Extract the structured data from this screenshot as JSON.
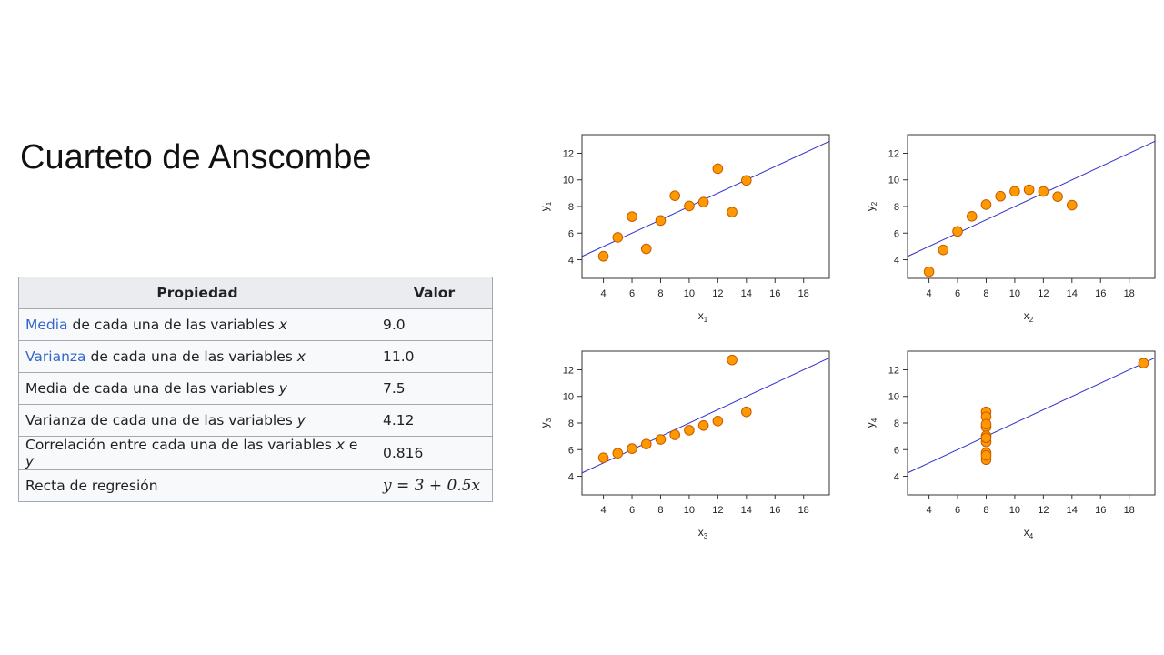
{
  "slide": {
    "title": "Cuarteto de Anscombe"
  },
  "table": {
    "headers": [
      "Propiedad",
      "Valor"
    ],
    "rows": [
      {
        "link": "Media",
        "text": " de cada una de las variables ",
        "var1": "x",
        "mid": "",
        "var2": "",
        "value": "9.0"
      },
      {
        "link": "Varianza",
        "text": " de cada una de las variables ",
        "var1": "x",
        "mid": "",
        "var2": "",
        "value": "11.0"
      },
      {
        "link": "",
        "text": "Media de cada una de las variables ",
        "var1": "y",
        "mid": "",
        "var2": "",
        "value": "7.5"
      },
      {
        "link": "",
        "text": "Varianza de cada una de las variables ",
        "var1": "y",
        "mid": "",
        "var2": "",
        "value": "4.12"
      },
      {
        "link": "",
        "text": "Correlación entre cada una de las variables ",
        "var1": "x",
        "mid": " e ",
        "var2": "y",
        "value": "0.816"
      },
      {
        "link": "",
        "text": "Recta de regresión",
        "var1": "",
        "mid": "",
        "var2": "",
        "value": "y = 3 + 0.5x"
      }
    ]
  },
  "colors": {
    "point_fill": "#ff9900",
    "point_stroke": "#c85a00",
    "line": "#3333cc",
    "link": "#3366cc"
  },
  "chart_data": [
    {
      "type": "scatter",
      "xlabel": "x",
      "xsub": "1",
      "ylabel": "y",
      "ysub": "1",
      "xlim": [
        2.5,
        19.8
      ],
      "ylim": [
        2.6,
        13.4
      ],
      "xticks": [
        4,
        6,
        8,
        10,
        12,
        14,
        16,
        18
      ],
      "yticks": [
        4,
        6,
        8,
        10,
        12
      ],
      "regression": {
        "intercept": 3,
        "slope": 0.5
      },
      "x": [
        10,
        8,
        13,
        9,
        11,
        14,
        6,
        4,
        12,
        7,
        5
      ],
      "y": [
        8.04,
        6.95,
        7.58,
        8.81,
        8.33,
        9.96,
        7.24,
        4.26,
        10.84,
        4.82,
        5.68
      ]
    },
    {
      "type": "scatter",
      "xlabel": "x",
      "xsub": "2",
      "ylabel": "y",
      "ysub": "2",
      "xlim": [
        2.5,
        19.8
      ],
      "ylim": [
        2.6,
        13.4
      ],
      "xticks": [
        4,
        6,
        8,
        10,
        12,
        14,
        16,
        18
      ],
      "yticks": [
        4,
        6,
        8,
        10,
        12
      ],
      "regression": {
        "intercept": 3,
        "slope": 0.5
      },
      "x": [
        10,
        8,
        13,
        9,
        11,
        14,
        6,
        4,
        12,
        7,
        5
      ],
      "y": [
        9.14,
        8.14,
        8.74,
        8.77,
        9.26,
        8.1,
        6.13,
        3.1,
        9.13,
        7.26,
        4.74
      ]
    },
    {
      "type": "scatter",
      "xlabel": "x",
      "xsub": "3",
      "ylabel": "y",
      "ysub": "3",
      "xlim": [
        2.5,
        19.8
      ],
      "ylim": [
        2.6,
        13.4
      ],
      "xticks": [
        4,
        6,
        8,
        10,
        12,
        14,
        16,
        18
      ],
      "yticks": [
        4,
        6,
        8,
        10,
        12
      ],
      "regression": {
        "intercept": 3,
        "slope": 0.5
      },
      "x": [
        10,
        8,
        13,
        9,
        11,
        14,
        6,
        4,
        12,
        7,
        5
      ],
      "y": [
        7.46,
        6.77,
        12.74,
        7.11,
        7.81,
        8.84,
        6.08,
        5.39,
        8.15,
        6.42,
        5.73
      ]
    },
    {
      "type": "scatter",
      "xlabel": "x",
      "xsub": "4",
      "ylabel": "y",
      "ysub": "4",
      "xlim": [
        2.5,
        19.8
      ],
      "ylim": [
        2.6,
        13.4
      ],
      "xticks": [
        4,
        6,
        8,
        10,
        12,
        14,
        16,
        18
      ],
      "yticks": [
        4,
        6,
        8,
        10,
        12
      ],
      "regression": {
        "intercept": 3,
        "slope": 0.5
      },
      "x": [
        8,
        8,
        8,
        8,
        8,
        8,
        8,
        19,
        8,
        8,
        8
      ],
      "y": [
        6.58,
        5.76,
        7.71,
        8.84,
        8.47,
        7.04,
        5.25,
        12.5,
        5.56,
        7.91,
        6.89
      ]
    }
  ]
}
